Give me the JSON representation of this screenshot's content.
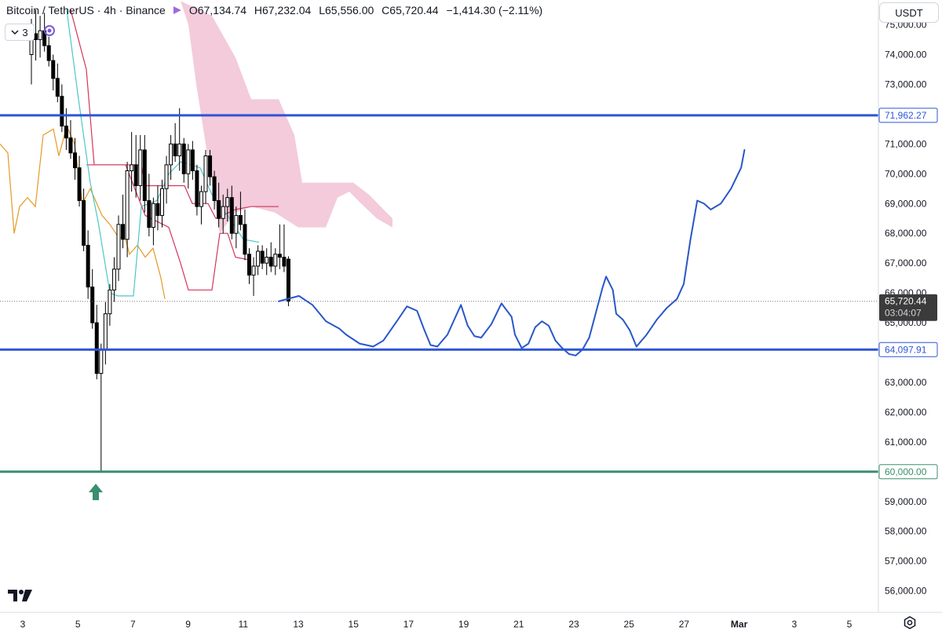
{
  "header": {
    "symbol": "Bitcoin / TetherUS · 4h · Binance",
    "open": "O67,134.74",
    "high": "H67,232.04",
    "low": "L65,556.00",
    "close": "C65,720.44",
    "change": "−1,414.30 (−2.11%)"
  },
  "legend_count": "3",
  "currency_button": "USDT",
  "icons": {
    "collapse": "chevron-down-icon",
    "indicator": "circle-arrows-icon",
    "logo": "tradingview-logo-icon",
    "settings": "gear-icon",
    "arrow": "arrow-up-icon"
  },
  "colors": {
    "level_blue": "#2e55d6",
    "level_green": "#3b8f6e",
    "projection": "#2957c9",
    "candle": "#000000",
    "kumo": "#f1c2d3",
    "kijun": "#d2365b",
    "tenkan": "#4cc6c8",
    "lagging": "#e39a26",
    "price_tag_bg": "#3b3b3b"
  },
  "chart_data": {
    "type": "candlestick",
    "price_axis": {
      "range": [
        55500,
        75500
      ],
      "ticks": [
        "56,000.00",
        "57,000.00",
        "58,000.00",
        "59,000.00",
        "60,000.00",
        "61,000.00",
        "62,000.00",
        "63,000.00",
        "64,000.00",
        "65,000.00",
        "66,000.00",
        "67,000.00",
        "68,000.00",
        "69,000.00",
        "70,000.00",
        "71,000.00",
        "72,000.00",
        "73,000.00",
        "74,000.00",
        "75,000.00"
      ]
    },
    "time_axis": {
      "labels": [
        "3",
        "5",
        "7",
        "9",
        "11",
        "13",
        "15",
        "17",
        "19",
        "21",
        "23",
        "25",
        "27",
        "Mar",
        "3",
        "5"
      ]
    },
    "levels": [
      {
        "value": 71962.27,
        "label": "71,962.27",
        "color": "blue"
      },
      {
        "value": 64097.91,
        "label": "64,097.91",
        "color": "blue"
      },
      {
        "value": 60000.0,
        "label": "60,000.00",
        "color": "green"
      }
    ],
    "last_price": {
      "value": 65720.44,
      "label": "65,720.44",
      "countdown": "03:04:07"
    },
    "candles": [
      [
        74000,
        75200,
        73000,
        74700
      ],
      [
        74700,
        75500,
        73800,
        74500
      ],
      [
        74500,
        75300,
        73900,
        74800
      ],
      [
        74800,
        75400,
        74100,
        74300
      ],
      [
        74300,
        74600,
        73600,
        73800
      ],
      [
        73800,
        74000,
        72800,
        73200
      ],
      [
        73200,
        73700,
        72400,
        72600
      ],
      [
        72600,
        73000,
        71400,
        71600
      ],
      [
        71600,
        72200,
        70800,
        71200
      ],
      [
        71200,
        71800,
        70500,
        70700
      ],
      [
        70700,
        71200,
        69800,
        70200
      ],
      [
        70200,
        70600,
        68900,
        69100
      ],
      [
        69100,
        69500,
        67400,
        67600
      ],
      [
        67600,
        68100,
        65800,
        66200
      ],
      [
        66200,
        66800,
        64800,
        65000
      ],
      [
        65000,
        65600,
        63100,
        63300
      ],
      [
        63300,
        64300,
        60000,
        64100
      ],
      [
        64100,
        65700,
        63600,
        65300
      ],
      [
        65300,
        66300,
        64900,
        66100
      ],
      [
        66100,
        67200,
        65700,
        66800
      ],
      [
        66800,
        68600,
        66400,
        68300
      ],
      [
        68300,
        69300,
        67500,
        67800
      ],
      [
        67800,
        70400,
        67200,
        70100
      ],
      [
        70100,
        71400,
        69400,
        70300
      ],
      [
        70300,
        71300,
        69200,
        69600
      ],
      [
        69600,
        71300,
        69100,
        70800
      ],
      [
        70800,
        71300,
        68700,
        69100
      ],
      [
        69100,
        70000,
        67900,
        68200
      ],
      [
        68200,
        69200,
        67600,
        69000
      ],
      [
        69000,
        69600,
        68100,
        68600
      ],
      [
        68600,
        69800,
        68200,
        69500
      ],
      [
        69500,
        70600,
        69000,
        70300
      ],
      [
        70300,
        71300,
        69800,
        71000
      ],
      [
        71000,
        71700,
        70400,
        70600
      ],
      [
        70600,
        72200,
        70100,
        71000
      ],
      [
        71000,
        71200,
        69700,
        70000
      ],
      [
        70000,
        71000,
        69500,
        70800
      ],
      [
        70800,
        71100,
        69800,
        70100
      ],
      [
        70100,
        70300,
        68600,
        68900
      ],
      [
        68900,
        69600,
        68300,
        69400
      ],
      [
        69400,
        70800,
        69000,
        70600
      ],
      [
        70600,
        70800,
        69600,
        69900
      ],
      [
        69900,
        70100,
        68800,
        69100
      ],
      [
        69100,
        69700,
        68200,
        68500
      ],
      [
        68500,
        69300,
        68000,
        68900
      ],
      [
        68900,
        69500,
        68400,
        69200
      ],
      [
        69200,
        69600,
        67800,
        68000
      ],
      [
        68000,
        68900,
        67500,
        68600
      ],
      [
        68600,
        69400,
        68100,
        68300
      ],
      [
        68300,
        68800,
        67100,
        67300
      ],
      [
        67300,
        67500,
        66300,
        66600
      ],
      [
        66600,
        67200,
        65900,
        66900
      ],
      [
        66900,
        67600,
        66600,
        67400
      ],
      [
        67400,
        67600,
        66800,
        67000
      ],
      [
        67000,
        67500,
        66600,
        67200
      ],
      [
        67200,
        67700,
        66700,
        66900
      ],
      [
        66900,
        67500,
        66600,
        67300
      ],
      [
        67300,
        68300,
        66800,
        67200
      ],
      [
        67200,
        68300,
        66700,
        66900
      ],
      [
        67134.74,
        67232.04,
        65556.0,
        65720.44
      ]
    ],
    "projection": [
      [
        65720,
        65000
      ],
      [
        65900,
        6
      ],
      [
        65600,
        10
      ],
      [
        65050,
        14
      ],
      [
        64800,
        18
      ],
      [
        64600,
        20
      ],
      [
        64300,
        24
      ],
      [
        64200,
        28
      ],
      [
        64400,
        31
      ],
      [
        65050,
        35
      ],
      [
        65550,
        38
      ],
      [
        65400,
        41
      ],
      [
        64800,
        43
      ],
      [
        64250,
        45
      ],
      [
        64200,
        47
      ],
      [
        64600,
        50
      ],
      [
        65600,
        54
      ],
      [
        64900,
        56
      ],
      [
        64550,
        58
      ],
      [
        64500,
        60
      ],
      [
        64950,
        63
      ],
      [
        65650,
        66
      ],
      [
        65200,
        69
      ],
      [
        64600,
        70
      ],
      [
        64150,
        72
      ],
      [
        64300,
        74
      ],
      [
        64850,
        76
      ],
      [
        65050,
        78
      ],
      [
        64900,
        80
      ],
      [
        64400,
        82
      ],
      [
        64150,
        84
      ],
      [
        63950,
        86
      ],
      [
        63900,
        88
      ],
      [
        64100,
        90
      ],
      [
        64500,
        92
      ],
      [
        65350,
        94
      ],
      [
        66200,
        96
      ],
      [
        66550,
        97
      ],
      [
        66100,
        99
      ],
      [
        65300,
        100
      ],
      [
        65100,
        102
      ],
      [
        64750,
        104
      ],
      [
        64200,
        106
      ],
      [
        64600,
        109
      ],
      [
        65100,
        112
      ],
      [
        65500,
        115
      ],
      [
        65800,
        118
      ],
      [
        66300,
        120
      ],
      [
        67800,
        122
      ],
      [
        69100,
        124
      ],
      [
        69000,
        126
      ],
      [
        68800,
        128
      ],
      [
        69000,
        131
      ],
      [
        69500,
        134
      ],
      [
        70200,
        137
      ],
      [
        70800,
        138
      ]
    ]
  }
}
